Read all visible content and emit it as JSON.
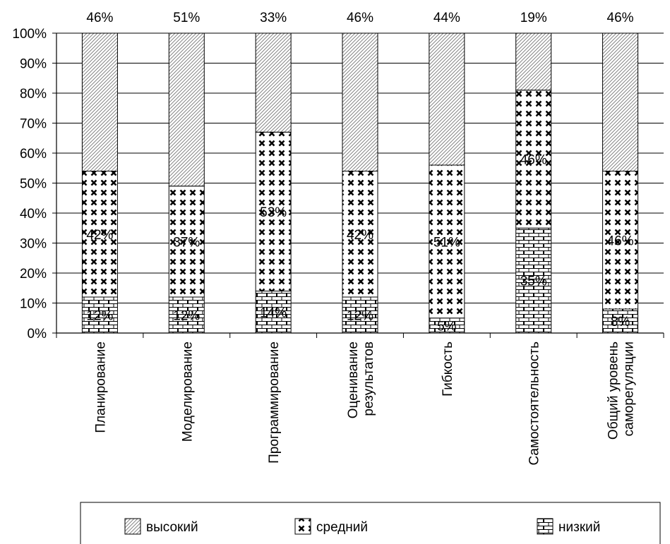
{
  "chart_data": {
    "type": "bar",
    "stacked": true,
    "categories": [
      [
        "Планирование"
      ],
      [
        "Моделирование"
      ],
      [
        "Программирование"
      ],
      [
        "Оценивание",
        "результатов"
      ],
      [
        "Гибкость"
      ],
      [
        "Самостоятельность"
      ],
      [
        "Общий уровень",
        "саморегуляции"
      ]
    ],
    "series": [
      {
        "name": "низкий",
        "values": [
          12,
          12,
          14,
          12,
          5,
          35,
          8
        ],
        "labels": [
          "12%",
          "12%",
          "14%",
          "12%",
          "5%",
          "35%",
          "8%"
        ]
      },
      {
        "name": "средний",
        "values": [
          42,
          37,
          53,
          42,
          51,
          46,
          46
        ],
        "labels": [
          "42%",
          "37%",
          "53%",
          "42%",
          "51%",
          "46%",
          "46%"
        ]
      },
      {
        "name": "высокий",
        "values": [
          46,
          51,
          33,
          46,
          44,
          19,
          46
        ],
        "labels": [
          "46%",
          "51%",
          "33%",
          "46%",
          "44%",
          "19%",
          "46%"
        ]
      }
    ],
    "yticks": [
      "0%",
      "10%",
      "20%",
      "30%",
      "40%",
      "50%",
      "60%",
      "70%",
      "80%",
      "90%",
      "100%"
    ],
    "ylim": [
      0,
      100
    ],
    "grid": true,
    "legend_order": [
      "высокий",
      "средний",
      "низкий"
    ],
    "legend_position": "bottom",
    "title": "",
    "xlabel": "",
    "ylabel": ""
  }
}
